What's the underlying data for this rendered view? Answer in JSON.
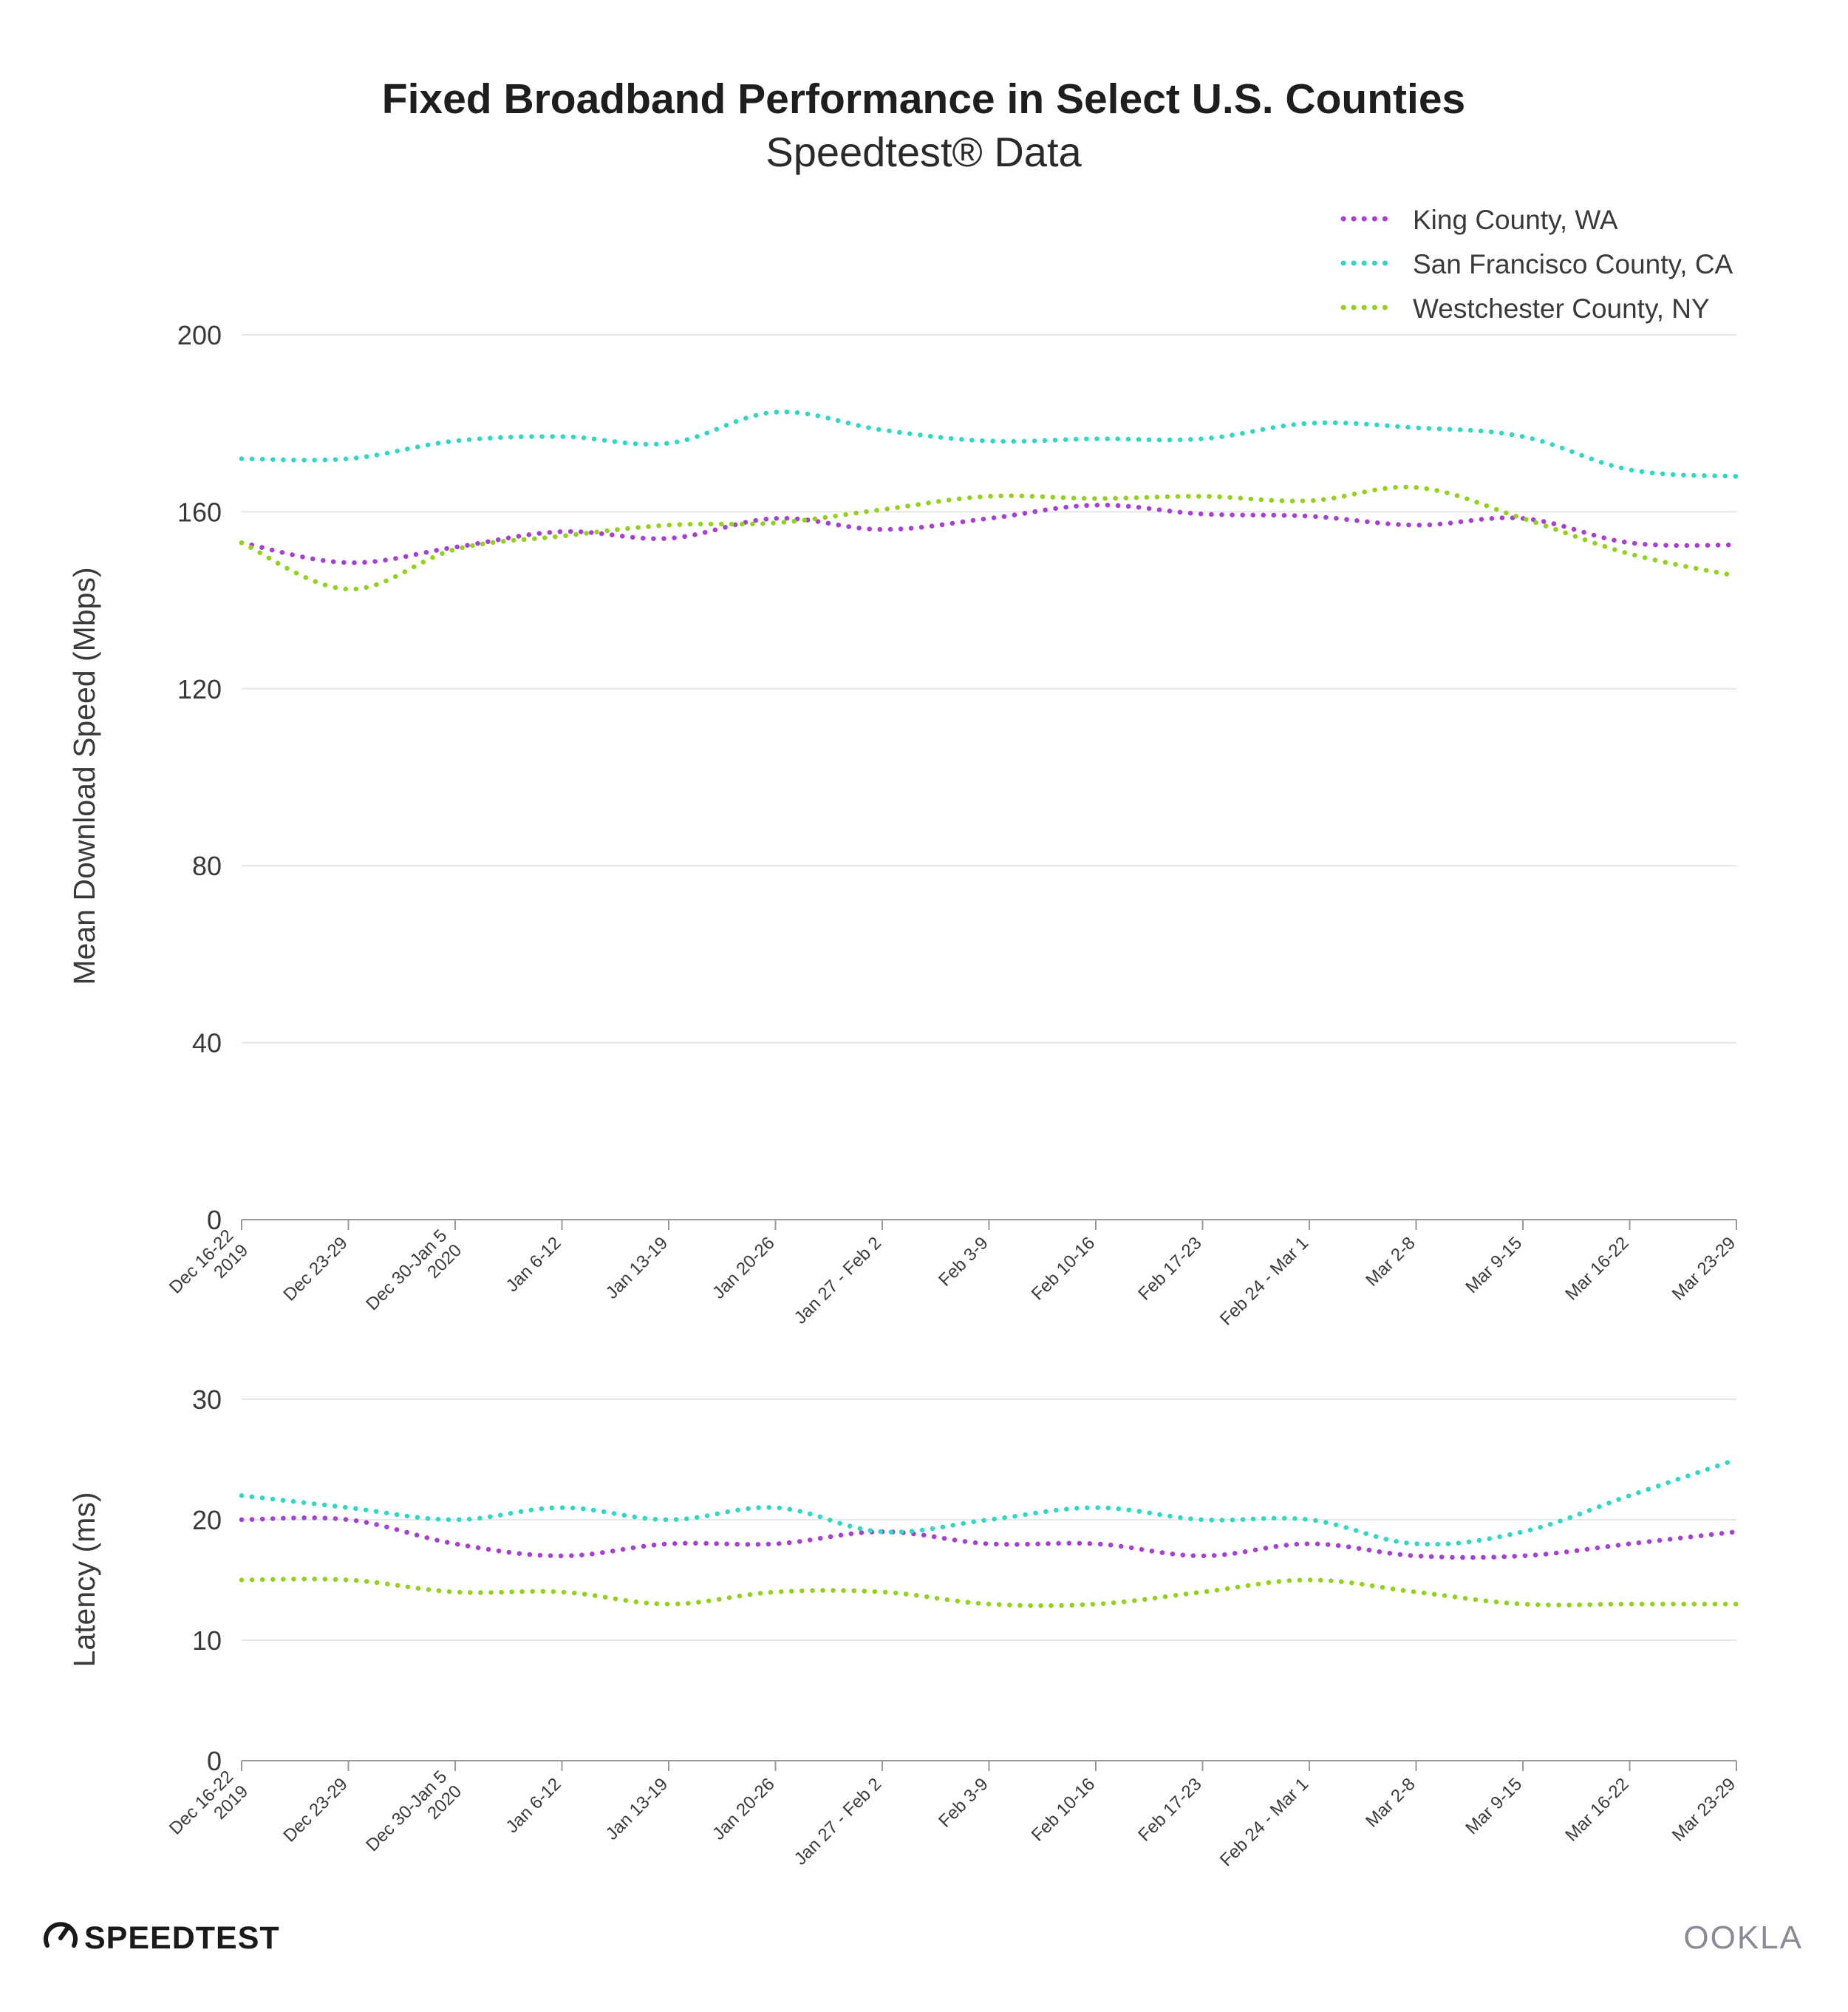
{
  "header": {
    "title": "Fixed Broadband Performance in Select U.S. Counties",
    "subtitle": "Speedtest® Data"
  },
  "branding": {
    "speedtest_logo": "SPEEDTEST",
    "ookla_logo": "OOKLA"
  },
  "colors": {
    "king": "#a63fd6",
    "sf": "#2fd7c5",
    "westchester": "#92d11c",
    "grid": "#e6e6e6",
    "axis": "#9a9a9a",
    "text": "#3a3a3a"
  },
  "legend": {
    "placement": "top-right",
    "items": [
      "King County, WA",
      "San Francisco County, CA",
      "Westchester County, NY"
    ]
  },
  "chart_data": [
    {
      "type": "line",
      "ylabel": "Mean Download Speed (Mbps)",
      "ylim": [
        0,
        200
      ],
      "yticks": [
        0,
        40,
        80,
        120,
        160,
        200
      ],
      "grid": true,
      "categories": [
        "Dec 16-22\n2019",
        "Dec 23-29",
        "Dec 30-Jan 5\n2020",
        "Jan 6-12",
        "Jan 13-19",
        "Jan 20-26",
        "Jan 27 - Feb 2",
        "Feb 3-9",
        "Feb 10-16",
        "Feb 17-23",
        "Feb 24 - Mar 1",
        "Mar 2-8",
        "Mar 9-15",
        "Mar 16-22",
        "Mar 23-29"
      ],
      "series": [
        {
          "name": "King County, WA",
          "values": [
            153,
            148.5,
            152,
            155.5,
            154,
            158.5,
            156,
            158.5,
            161.5,
            159.5,
            159,
            157,
            158.5,
            153,
            152.5
          ]
        },
        {
          "name": "San Francisco County, CA",
          "values": [
            172,
            172,
            176,
            177,
            175.5,
            182.5,
            178.5,
            176,
            176.5,
            176.5,
            180,
            179,
            177,
            169.5,
            168
          ]
        },
        {
          "name": "Westchester County, NY",
          "values": [
            153,
            142.5,
            151.5,
            154.5,
            157,
            157.5,
            160.5,
            163.5,
            163,
            163.5,
            162.5,
            165.5,
            158.5,
            150.5,
            145.5
          ]
        }
      ]
    },
    {
      "type": "line",
      "ylabel": "Latency (ms)",
      "ylim": [
        0,
        30
      ],
      "yticks": [
        0,
        10,
        20,
        30
      ],
      "grid": true,
      "categories": [
        "Dec 16-22\n2019",
        "Dec 23-29",
        "Dec 30-Jan 5\n2020",
        "Jan 6-12",
        "Jan 13-19",
        "Jan 20-26",
        "Jan 27 - Feb 2",
        "Feb 3-9",
        "Feb 10-16",
        "Feb 17-23",
        "Feb 24 - Mar 1",
        "Mar 2-8",
        "Mar 9-15",
        "Mar 16-22",
        "Mar 23-29"
      ],
      "series": [
        {
          "name": "King County, WA",
          "values": [
            20,
            20,
            18,
            17,
            18,
            18,
            19,
            18,
            18,
            17,
            18,
            17,
            17,
            18,
            19
          ]
        },
        {
          "name": "San Francisco County, CA",
          "values": [
            22,
            21,
            20,
            21,
            20,
            21,
            19,
            20,
            21,
            20,
            20,
            18,
            19,
            22,
            25
          ]
        },
        {
          "name": "Westchester County, NY",
          "values": [
            15,
            15,
            14,
            14,
            13,
            14,
            14,
            13,
            13,
            14,
            15,
            14,
            13,
            13,
            13
          ]
        }
      ]
    }
  ]
}
